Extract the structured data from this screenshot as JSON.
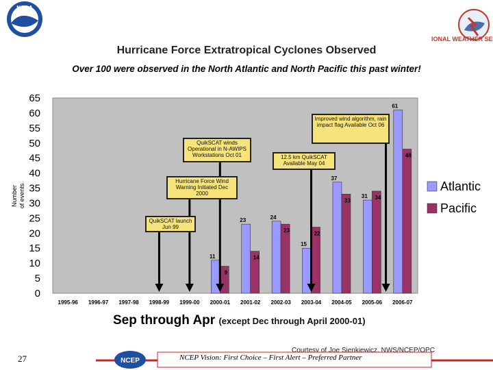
{
  "header": {
    "title": "Hurricane Force Extratropical Cyclones Observed",
    "subtitle": "Over 100 were observed in the North Atlantic and North Pacific this past winter!",
    "left_logo_text": "NOAA",
    "right_logo_text": "IONAL WEATHER SERV"
  },
  "chart_data": {
    "type": "bar",
    "ylabel": "Number of events",
    "xlabel": "Sep through Apr",
    "xlabel_note": "(except Dec through April 2000-01)",
    "ylim": [
      0,
      65
    ],
    "yticks": [
      "0",
      "5",
      "10",
      "15",
      "20",
      "25",
      "30",
      "35",
      "40",
      "45",
      "50",
      "55",
      "60",
      "65"
    ],
    "categories": [
      "1995-96",
      "1996-97",
      "1997-98",
      "1998-99",
      "1999-00",
      "2000-01",
      "2001-02",
      "2002-03",
      "2003-04",
      "2004-05",
      "2005-06",
      "2006-07"
    ],
    "series": [
      {
        "name": "Atlantic",
        "color": "#9999ff",
        "values": [
          0,
          0,
          0,
          0,
          0,
          11,
          23,
          24,
          15,
          37,
          31,
          61
        ]
      },
      {
        "name": "Pacific",
        "color": "#993366",
        "values": [
          0,
          0,
          0,
          0,
          0,
          9,
          14,
          23,
          22,
          33,
          34,
          48
        ]
      }
    ],
    "legend": "right",
    "plot_background": "#c0c0c0",
    "annotations": [
      {
        "text": "QuikSCAT launch Jun 99",
        "target_category": "1998-99"
      },
      {
        "text": "Hurricane Force Wind Warning Initiated Dec 2000",
        "target_category": "1999-00"
      },
      {
        "text": "QuikSCAT winds Operational in N-AWIPS Workstations Oct 01",
        "target_category": "2000-01"
      },
      {
        "text": "12.5 km QuikSCAT Available May 04",
        "target_category": "2003-04"
      },
      {
        "text": "Improved wind algorithm, rain impact flag Available Oct 06",
        "target_category": "2005-06"
      }
    ]
  },
  "footer": {
    "page_number": "27",
    "courtesy": "Courtesy of Joe Sienkiewicz, NWS/NCEP/OPC",
    "vision": "NCEP Vision: First Choice – First Alert – Preferred Partner",
    "logo_text": "NCEP"
  }
}
